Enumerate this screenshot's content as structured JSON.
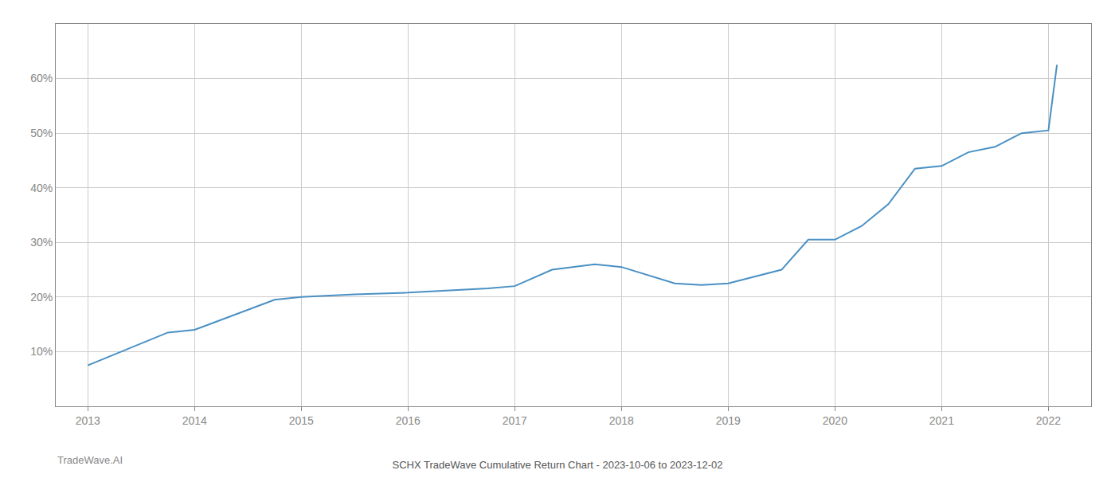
{
  "chart_data": {
    "type": "line",
    "title": "SCHX TradeWave Cumulative Return Chart - 2023-10-06 to 2023-12-02",
    "annotations": [
      "TradeWave.AI"
    ],
    "x": [
      2013.0,
      2013.75,
      2014.0,
      2014.75,
      2015.0,
      2015.5,
      2016.0,
      2016.5,
      2016.75,
      2017.0,
      2017.35,
      2017.75,
      2018.0,
      2018.5,
      2018.75,
      2019.0,
      2019.5,
      2019.75,
      2020.0,
      2020.25,
      2020.5,
      2020.75,
      2021.0,
      2021.25,
      2021.5,
      2021.75,
      2022.0,
      2022.08
    ],
    "values": [
      7.5,
      13.5,
      14.0,
      19.5,
      20.0,
      20.5,
      20.8,
      21.3,
      21.6,
      22.0,
      25.0,
      26.0,
      25.5,
      22.5,
      22.2,
      22.5,
      25.0,
      30.5,
      30.5,
      33.0,
      37.0,
      43.5,
      44.0,
      46.5,
      47.5,
      50.0,
      50.5,
      62.5
    ],
    "color": "#4a90c4",
    "xlim": [
      2012.7,
      2022.4
    ],
    "ylim": [
      0,
      70
    ],
    "xticks": [
      2013,
      2014,
      2015,
      2016,
      2017,
      2018,
      2019,
      2020,
      2021,
      2022
    ],
    "yticks": [
      {
        "value": 10,
        "label": "10%"
      },
      {
        "value": 20,
        "label": "20%"
      },
      {
        "value": 30,
        "label": "30%"
      },
      {
        "value": 40,
        "label": "40%"
      },
      {
        "value": 50,
        "label": "50%"
      },
      {
        "value": 60,
        "label": "60%"
      }
    ],
    "grid": true
  }
}
